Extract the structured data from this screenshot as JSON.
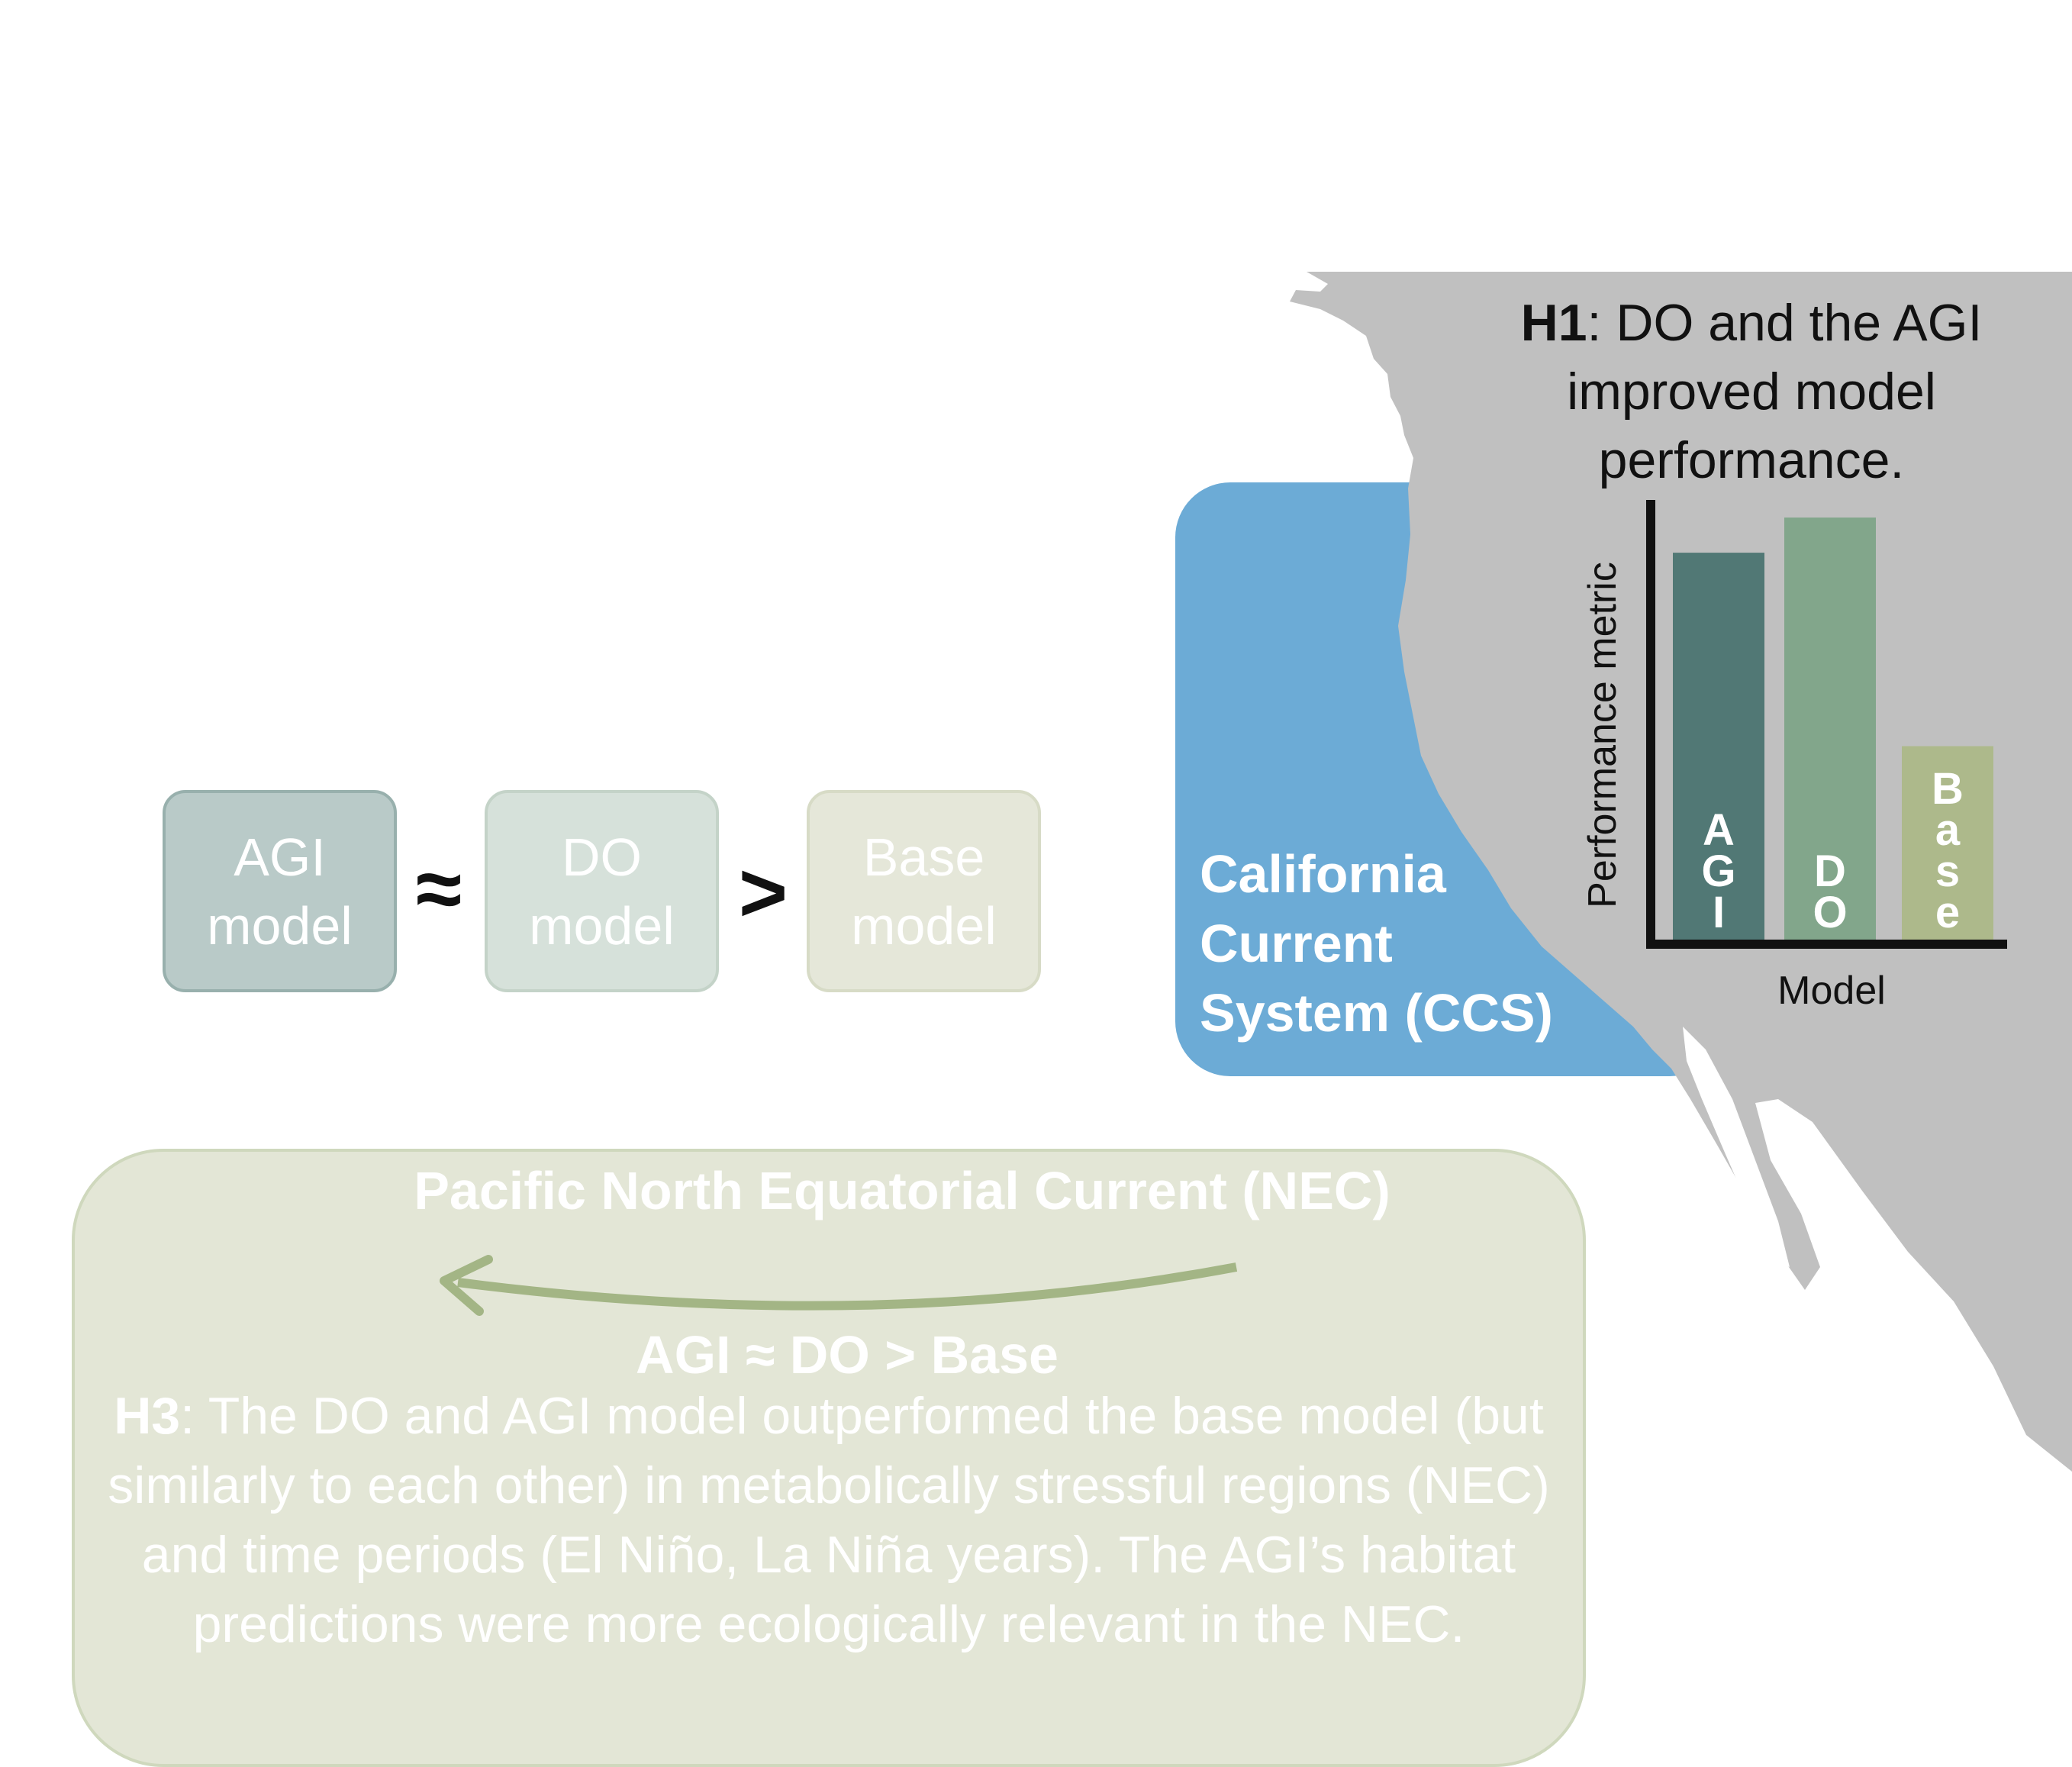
{
  "colors": {
    "ocean_ccs": "#6cabd6",
    "land": "#c0c0c0",
    "agi": "#517875",
    "do": "#82a68b",
    "base": "#adb98b",
    "nec_fill": "#e3e6d6",
    "nec_border": "#cfd8bd",
    "nec_arrow": "#a3b585"
  },
  "models": {
    "agi_label": "AGI\nmodel",
    "do_label": "DO\nmodel",
    "base_label": "Base\nmodel",
    "approx_symbol": "≈",
    "greater_symbol": ">"
  },
  "ccs": {
    "label": "California\nCurrent\nSystem (CCS)"
  },
  "h1": {
    "tag": "H1",
    "text": ": DO and the AGI improved model performance."
  },
  "chart_data": {
    "type": "bar",
    "categories": [
      "AGI",
      "DO",
      "Base"
    ],
    "values": [
      0.88,
      0.96,
      0.44
    ],
    "bar_labels": [
      "A\nG\nI",
      "D\nO",
      "B\na\ns\ne"
    ],
    "colors": [
      "#517875",
      "#82a68b",
      "#adb98b"
    ],
    "xlabel": "Model",
    "ylabel": "Performance metric",
    "ylim": [
      0,
      1
    ]
  },
  "nec": {
    "title": "Pacific North Equatorial Current (NEC)",
    "equation": "AGI ≈ DO > Base",
    "tag": "H3",
    "text": ": The DO and AGI model outperformed the base model (but similarly to each other) in metabolically stressful regions (NEC) and time periods (El Niño, La Niña years). The AGI’s habitat predictions were more ecologically relevant in the NEC."
  }
}
